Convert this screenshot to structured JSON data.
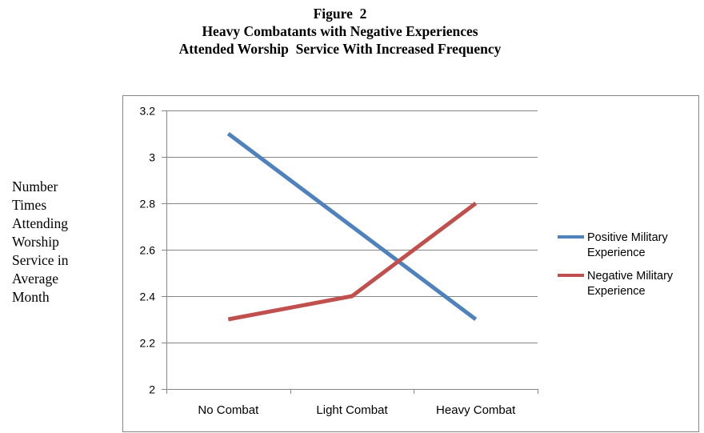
{
  "chart_data": {
    "type": "line",
    "title": [
      "Figure  2",
      "Heavy Combatants with Negative Experiences",
      "Attended Worship  Service With Increased Frequency"
    ],
    "ylabel": [
      "Number",
      "Times",
      "Attending",
      "Worship",
      "Service in",
      "Average",
      "Month"
    ],
    "xlabel": "",
    "categories": [
      "No Combat",
      "Light Combat",
      "Heavy Combat"
    ],
    "ylim": [
      2,
      3.2
    ],
    "yticks": [
      "2",
      "2.2",
      "2.4",
      "2.6",
      "2.8",
      "3",
      "3.2"
    ],
    "ytick_values": [
      2,
      2.2,
      2.4,
      2.6,
      2.8,
      3,
      3.2
    ],
    "grid": true,
    "legend_position": "right",
    "series": [
      {
        "name": "Positive Military Experience",
        "legend_lines": [
          "Positive Military",
          "Experience"
        ],
        "values": [
          3.1,
          2.7,
          2.3
        ],
        "color": "#4F81BD"
      },
      {
        "name": "Negative Military Experience",
        "legend_lines": [
          "Negative Military",
          "Experience"
        ],
        "values": [
          2.3,
          2.4,
          2.8
        ],
        "color": "#C0504D"
      }
    ]
  }
}
